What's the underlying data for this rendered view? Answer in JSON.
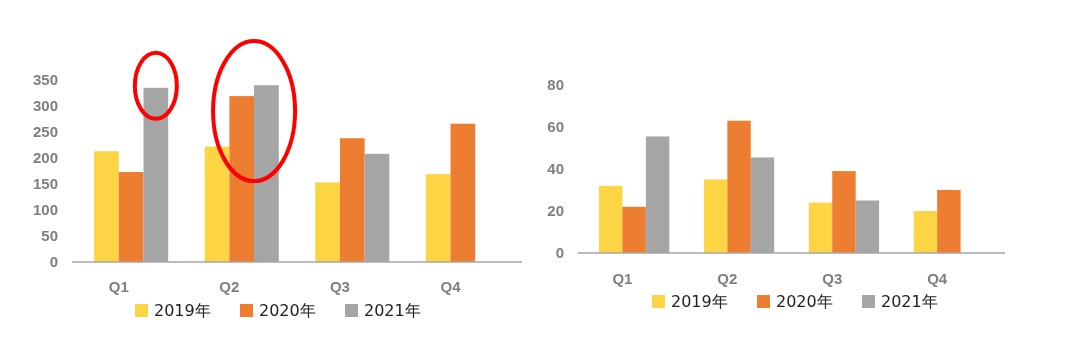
{
  "chart_data": [
    {
      "type": "bar",
      "categories": [
        "Q1",
        "Q2",
        "Q3",
        "Q4"
      ],
      "series": [
        {
          "name": "2019年",
          "color": "#fdd443",
          "values": [
            213,
            222,
            153,
            169
          ]
        },
        {
          "name": "2020年",
          "color": "#ed7d31",
          "values": [
            173,
            319,
            238,
            266
          ]
        },
        {
          "name": "2021年",
          "color": "#a5a5a5",
          "values": [
            335,
            340,
            208,
            null
          ]
        }
      ],
      "ylim": [
        0,
        350
      ],
      "yticks": [
        0,
        50,
        100,
        150,
        200,
        250,
        300,
        350
      ],
      "grid": false,
      "legend": "bottom"
    },
    {
      "type": "bar",
      "categories": [
        "Q1",
        "Q2",
        "Q3",
        "Q4"
      ],
      "series": [
        {
          "name": "2019年",
          "color": "#fdd443",
          "values": [
            32,
            35,
            24,
            20
          ]
        },
        {
          "name": "2020年",
          "color": "#ed7d31",
          "values": [
            22,
            63,
            39,
            30
          ]
        },
        {
          "name": "2021年",
          "color": "#a5a5a5",
          "values": [
            55.5,
            45.5,
            25,
            null
          ]
        }
      ],
      "ylim": [
        0,
        80
      ],
      "yticks": [
        0,
        20,
        40,
        60,
        80
      ],
      "grid": false,
      "legend": "bottom"
    }
  ]
}
